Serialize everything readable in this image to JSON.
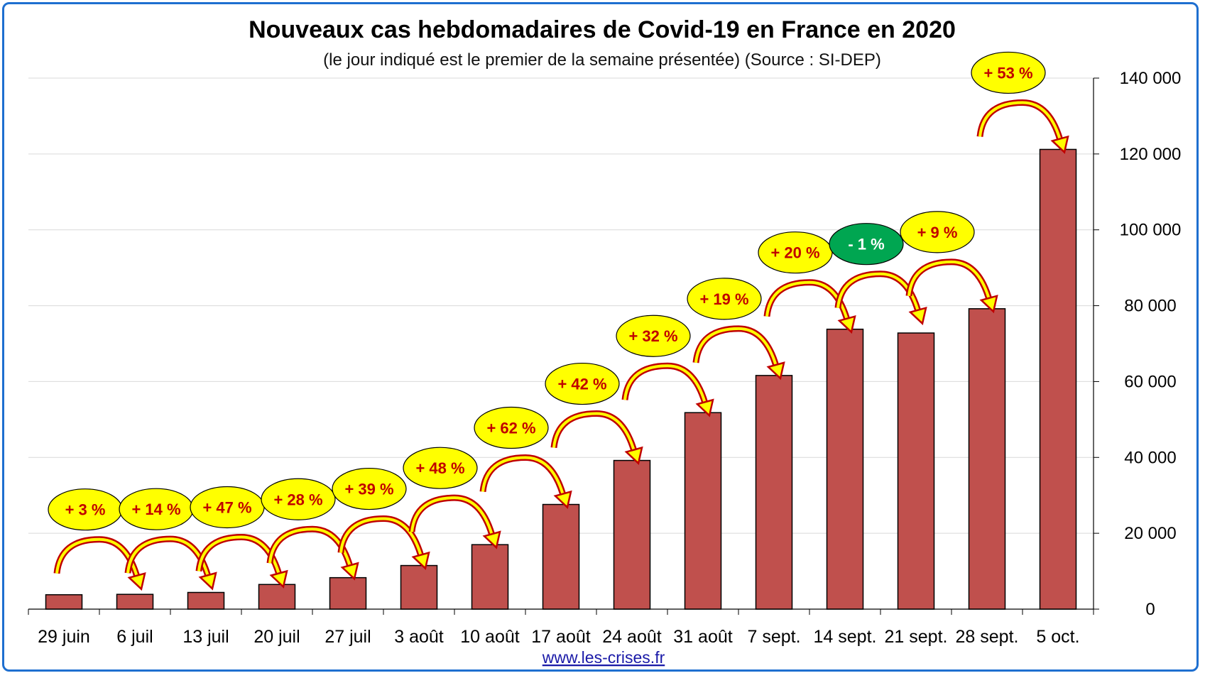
{
  "chart_data": {
    "type": "bar",
    "title": "Nouveaux cas hebdomadaires de Covid-19 en France en 2020",
    "subtitle": "(le jour indiqué est le premier de la semaine présentée) (Source : SI-DEP)",
    "categories": [
      "29 juin",
      "6 juil",
      "13 juil",
      "20 juil",
      "27 juil",
      "3 août",
      "10 août",
      "17 août",
      "24 août",
      "31 août",
      "7 sept.",
      "14 sept.",
      "21 sept.",
      "28 sept.",
      "5 oct."
    ],
    "values": [
      3800,
      3900,
      4400,
      6500,
      8300,
      11500,
      17000,
      27600,
      39200,
      51800,
      61600,
      73800,
      72800,
      79200,
      121200
    ],
    "ylim": [
      0,
      140000
    ],
    "yticks": [
      0,
      20000,
      40000,
      60000,
      80000,
      100000,
      120000,
      140000
    ],
    "ytick_labels": [
      "0",
      "20 000",
      "40 000",
      "60 000",
      "80 000",
      "100 000",
      "120 000",
      "140 000"
    ],
    "y_axis_side": "right",
    "grid": true,
    "bar_color": "#c0504d",
    "changes": [
      "+ 3 %",
      "+ 14 %",
      "+ 47 %",
      "+ 28 %",
      "+ 39 %",
      "+ 48 %",
      "+ 62 %",
      "+ 42 %",
      "+ 32 %",
      "+ 19 %",
      "+ 20 %",
      "- 1 %",
      "+ 9 %",
      "+ 53 %"
    ],
    "change_colors": {
      "up_fill": "#ffff00",
      "up_text": "#c00000",
      "down_fill": "#00a651",
      "down_text": "#ffffff",
      "arrow": "#c00000"
    },
    "source": "www.les-crises.fr"
  }
}
